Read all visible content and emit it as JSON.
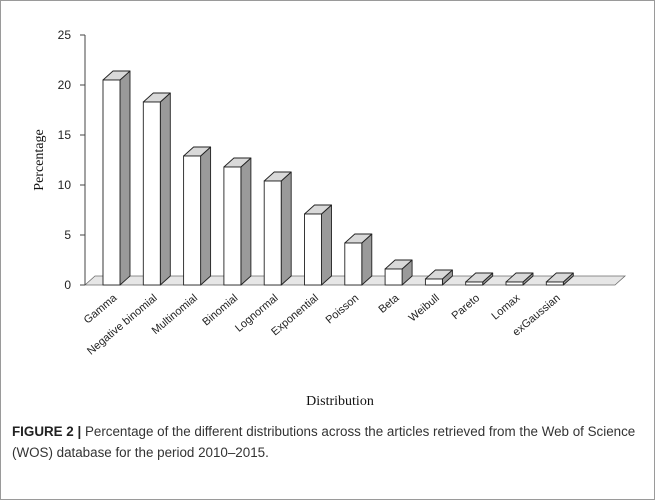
{
  "chart_data": {
    "type": "bar",
    "style": "3d-column",
    "categories": [
      "Gamma",
      "Negative binomial",
      "Multinomial",
      "Binomial",
      "Lognormal",
      "Exponential",
      "Poisson",
      "Beta",
      "Weibull",
      "Pareto",
      "Lomax",
      "exGaussian"
    ],
    "values": [
      20.5,
      18.3,
      12.9,
      11.8,
      10.4,
      7.1,
      4.2,
      1.6,
      0.6,
      0.3,
      0.3,
      0.3
    ],
    "xlabel": "Distribution",
    "ylabel": "Percentage",
    "ylim": [
      0,
      25
    ],
    "yticks": [
      0,
      5,
      10,
      15,
      20,
      25
    ],
    "grid": false,
    "legend": "none",
    "colors": {
      "bar_front": "#ffffff",
      "bar_side": "#9a9a9a",
      "bar_top": "#d9d9d9",
      "outline": "#222222"
    }
  },
  "caption": {
    "label": "FIGURE 2 |",
    "text": " Percentage of the different distributions across the articles retrieved from the Web of Science (WOS) database for the period 2010–2015."
  }
}
